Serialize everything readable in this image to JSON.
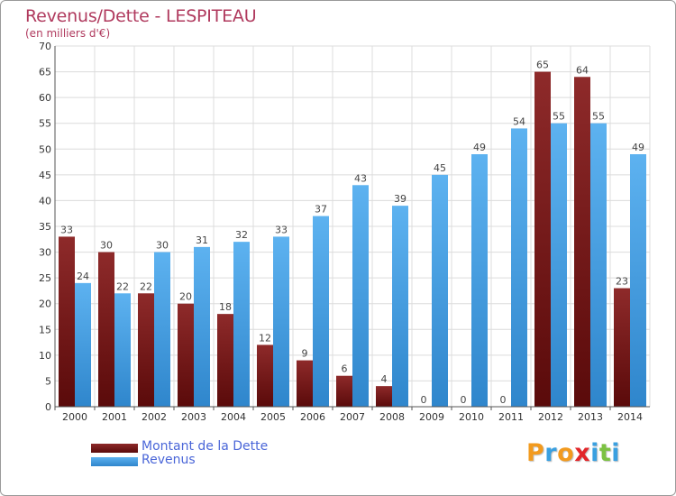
{
  "header": {
    "title": "Revenus/Dette - LESPITEAU",
    "subtitle": "(en milliers d'€)"
  },
  "chart_data": {
    "type": "bar",
    "categories": [
      "2000",
      "2001",
      "2002",
      "2003",
      "2004",
      "2005",
      "2006",
      "2007",
      "2008",
      "2009",
      "2010",
      "2011",
      "2012",
      "2013",
      "2014"
    ],
    "series": [
      {
        "name": "Montant de la Dette",
        "color": "#7b1a1a",
        "values": [
          33,
          30,
          22,
          20,
          18,
          12,
          9,
          6,
          4,
          0,
          0,
          0,
          65,
          64,
          23
        ]
      },
      {
        "name": "Revenus",
        "color": "#4aa3e8",
        "values": [
          24,
          22,
          30,
          31,
          32,
          33,
          37,
          43,
          39,
          45,
          49,
          54,
          55,
          55,
          49
        ]
      }
    ],
    "ylim": [
      0,
      70
    ],
    "yticks": [
      0,
      5,
      10,
      15,
      20,
      25,
      30,
      35,
      40,
      45,
      50,
      55,
      60,
      65,
      70
    ],
    "grid": true,
    "legend_placement": "bottom-left"
  },
  "legend": {
    "items": [
      {
        "label": "Montant de la Dette",
        "color": "#7b1a1a"
      },
      {
        "label": "Revenus",
        "color": "#4aa3e8"
      }
    ]
  },
  "logo": {
    "letters": [
      "P",
      "r",
      "o",
      "x",
      "i",
      "t",
      "i"
    ],
    "colors": [
      "#f29a1e",
      "#3aa0e0",
      "#f29a1e",
      "#e2262a",
      "#3aa0e0",
      "#7cc242",
      "#3aa0e0"
    ]
  }
}
